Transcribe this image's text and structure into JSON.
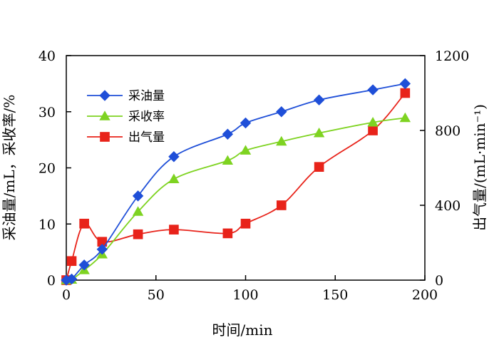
{
  "chart_data": {
    "type": "line",
    "xlabel": "时间/min",
    "ylabel_left": "采油量/mL，采收率/%",
    "ylabel_right": "出气量/(mL·min⁻¹)",
    "xlim": [
      0,
      200
    ],
    "ylim_left": [
      0,
      40
    ],
    "ylim_right": [
      0,
      1200
    ],
    "x_ticks": [
      "0",
      "50",
      "100",
      "150",
      "200"
    ],
    "y_left_ticks": [
      "0",
      "10",
      "20",
      "30",
      "40"
    ],
    "y_right_ticks": [
      "0",
      "400",
      "800",
      "1200"
    ],
    "grid": false,
    "legend_position": "top-left",
    "series": [
      {
        "name": "采油量",
        "axis": "left",
        "color": "#1f4fd8",
        "marker": "diamond",
        "x": [
          0,
          3,
          10,
          20,
          40,
          60,
          90,
          100,
          120,
          141,
          171,
          189
        ],
        "y": [
          0,
          0.2,
          2.7,
          5.5,
          15.0,
          22.0,
          26.0,
          28.0,
          30.0,
          32.1,
          33.9,
          35.0
        ]
      },
      {
        "name": "采收率",
        "axis": "left",
        "color": "#7ed321",
        "marker": "triangle",
        "x": [
          0,
          3,
          10,
          20,
          40,
          60,
          90,
          100,
          120,
          141,
          171,
          189
        ],
        "y": [
          0,
          0.1,
          1.8,
          4.6,
          12.2,
          18.0,
          21.3,
          23.1,
          24.7,
          26.2,
          28.1,
          28.9
        ]
      },
      {
        "name": "出气量",
        "axis": "right",
        "color": "#e8231a",
        "marker": "square",
        "x": [
          0,
          3,
          10,
          20,
          40,
          60,
          90,
          100,
          120,
          141,
          171,
          189
        ],
        "y": [
          0,
          102,
          302,
          205,
          245,
          270,
          250,
          302,
          400,
          605,
          800,
          1000
        ]
      }
    ]
  }
}
